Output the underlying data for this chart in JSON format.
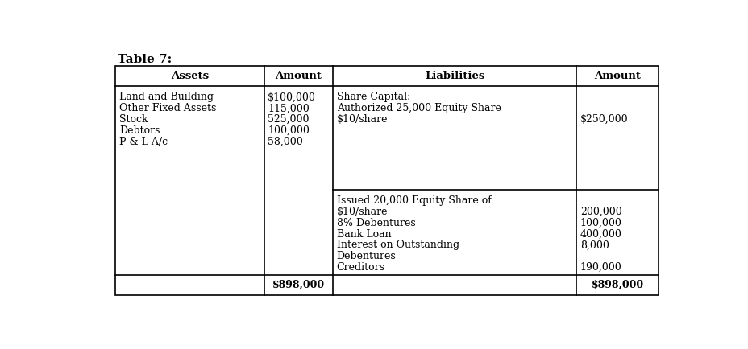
{
  "title": "Table 7:",
  "background_color": "#ffffff",
  "headers": [
    "Assets",
    "Amount",
    "Liabilities",
    "Amount"
  ],
  "assets_col": [
    "Land and Building",
    "Other Fixed Assets",
    "Stock",
    "Debtors",
    "P & L A/c"
  ],
  "assets_amounts": [
    "$100,000",
    "115,000",
    "525,000",
    "100,000",
    "58,000"
  ],
  "liabilities_col_block1": [
    "Share Capital:",
    "Authorized 25,000 Equity Share",
    "$10/share"
  ],
  "liabilities_amount_block1": "$250,000",
  "liabilities_col_block2": [
    "Issued 20,000 Equity Share of",
    "$10/share",
    "8% Debentures",
    "Bank Loan",
    "Interest on Outstanding",
    "Debentures",
    "Creditors"
  ],
  "liabilities_amounts_block2": [
    "",
    "200,000",
    "100,000",
    "400,000",
    "8,000",
    "",
    "190,000"
  ],
  "total_assets": "$898,000",
  "total_liabilities": "$898,000",
  "font_family": "DejaVu Serif",
  "font_size": 9.0,
  "header_font_size": 9.5,
  "title_font_size": 11
}
